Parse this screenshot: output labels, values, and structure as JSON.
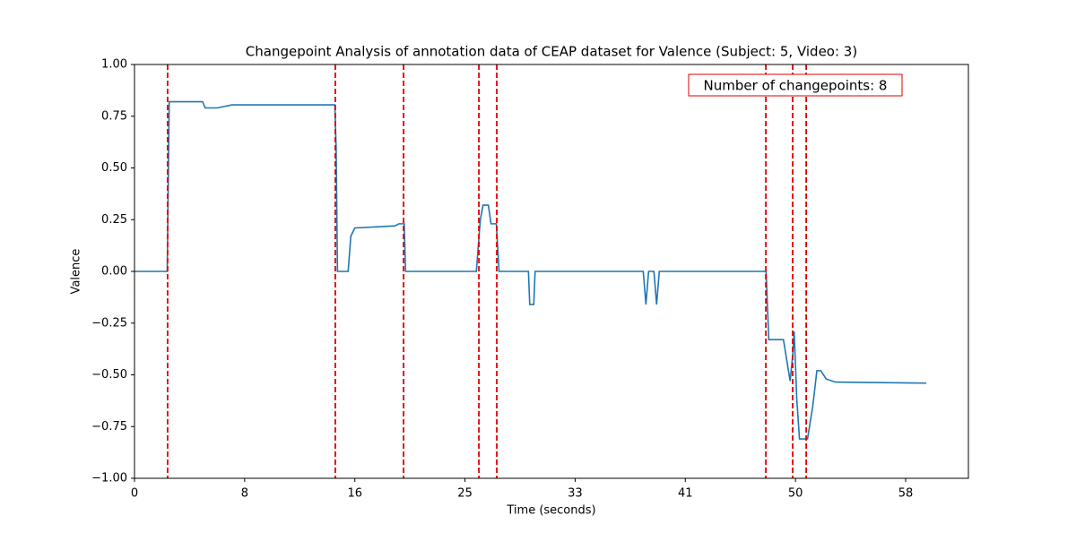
{
  "chart_data": {
    "type": "line",
    "title": "Changepoint Analysis of annotation data of CEAP dataset for Valence (Subject: 5, Video: 3)",
    "x_label": "Time (seconds)",
    "y_label": "Valence",
    "annotation": "Number of changepoints: 8",
    "xlim": [
      0,
      62.45
    ],
    "ylim": [
      -1,
      1
    ],
    "xticks": [
      0,
      {
        "value": 8.25,
        "label": "8"
      },
      {
        "value": 16.5,
        "label": "16"
      },
      {
        "value": 24.75,
        "label": "25"
      },
      {
        "value": 33,
        "label": "33"
      },
      {
        "value": 41.25,
        "label": "41"
      },
      {
        "value": 49.5,
        "label": "50"
      },
      {
        "value": 57.75,
        "label": "58"
      }
    ],
    "yticks": [
      {
        "value": -1,
        "label": "−1.00"
      },
      {
        "value": -0.75,
        "label": "−0.75"
      },
      {
        "value": -0.5,
        "label": "−0.50"
      },
      {
        "value": -0.25,
        "label": "−0.25"
      },
      {
        "value": 0,
        "label": "0.00"
      },
      {
        "value": 0.25,
        "label": "0.25"
      },
      {
        "value": 0.5,
        "label": "0.50"
      },
      {
        "value": 0.75,
        "label": "0.75"
      },
      {
        "value": 1,
        "label": "1.00"
      }
    ],
    "changepoints": [
      2.48,
      15.04,
      20.15,
      25.79,
      27.13,
      47.28,
      49.29,
      50.3
    ],
    "changepoint_color": "#e00000",
    "series": [
      {
        "color": "#1f77b4",
        "x": [
          0,
          2.45,
          2.6,
          5.1,
          5.3,
          6.2,
          7.3,
          15.0,
          15.1,
          15.2,
          16.0,
          16.2,
          16.5,
          19.5,
          19.8,
          20.2,
          20.3,
          25.6,
          25.9,
          26.1,
          26.5,
          26.7,
          27.1,
          27.3,
          29.5,
          29.6,
          29.9,
          30.0,
          38.1,
          38.3,
          38.5,
          38.9,
          39.1,
          39.3,
          47.3,
          47.5,
          48.6,
          48.9,
          49.1,
          49.3,
          49.4,
          49.6,
          49.8,
          50.4,
          50.8,
          51.1,
          51.4,
          51.8,
          52.5,
          59.3
        ],
        "values": [
          0,
          0,
          0.82,
          0.82,
          0.79,
          0.79,
          0.805,
          0.805,
          0.6,
          0,
          0,
          0.17,
          0.21,
          0.22,
          0.23,
          0.23,
          0,
          0,
          0.25,
          0.32,
          0.32,
          0.23,
          0.23,
          0,
          0,
          -0.16,
          -0.16,
          0,
          0,
          -0.16,
          0,
          0,
          -0.16,
          0,
          0,
          -0.33,
          -0.33,
          -0.45,
          -0.53,
          -0.4,
          -0.29,
          -0.62,
          -0.81,
          -0.81,
          -0.65,
          -0.48,
          -0.48,
          -0.52,
          -0.535,
          -0.54
        ]
      }
    ]
  }
}
